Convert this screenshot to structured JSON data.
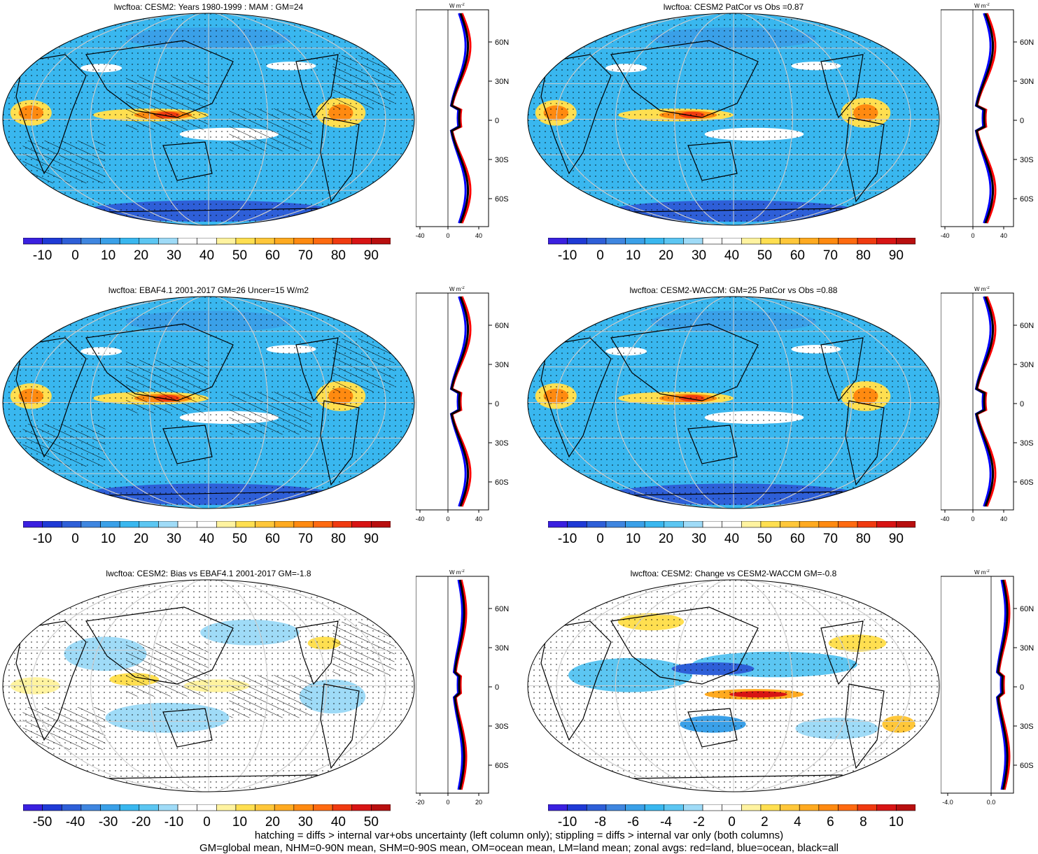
{
  "palette": [
    "#3a20e0",
    "#1f3ad6",
    "#2e5fd8",
    "#3f86e0",
    "#3aa0e8",
    "#39b7ef",
    "#5cc6f2",
    "#9fdbf7",
    "#ffffff",
    "#ffffff",
    "#fff3a0",
    "#ffdf50",
    "#ffc73a",
    "#ffaa20",
    "#ff8a10",
    "#ff6a10",
    "#f03a10",
    "#d81414",
    "#b80f0f"
  ],
  "panels": [
    {
      "title": "lwcftoa: CESM2: Years 1980-1999 : MAM : GM=24",
      "ticks": [
        "-10",
        "0",
        "10",
        "20",
        "30",
        "40",
        "50",
        "60",
        "70",
        "80",
        "90"
      ],
      "zonal_xticks": [
        "-40",
        "0",
        "40"
      ],
      "zonal_unit": "W m",
      "zonal_unit_sup": "-2",
      "lat_ticks": [
        "60N",
        "30N",
        "0",
        "30S",
        "60S"
      ],
      "kind": "mean",
      "hatch": true
    },
    {
      "title": "lwcftoa: CESM2 PatCor vs Obs =0.87",
      "ticks": [
        "-10",
        "0",
        "10",
        "20",
        "30",
        "40",
        "50",
        "60",
        "70",
        "80",
        "90"
      ],
      "zonal_xticks": [
        "-40",
        "0",
        "40"
      ],
      "zonal_unit": "W m",
      "zonal_unit_sup": "-2",
      "lat_ticks": [
        "60N",
        "30N",
        "0",
        "30S",
        "60S"
      ],
      "kind": "mean",
      "hatch": false
    },
    {
      "title": "lwcftoa: EBAF4.1 2001-2017 GM=26 Uncer=15 W/m2",
      "ticks": [
        "-10",
        "0",
        "10",
        "20",
        "30",
        "40",
        "50",
        "60",
        "70",
        "80",
        "90"
      ],
      "zonal_xticks": [
        "-40",
        "0",
        "40"
      ],
      "zonal_unit": "W m",
      "zonal_unit_sup": "-2",
      "lat_ticks": [
        "60N",
        "30N",
        "0",
        "30S",
        "60S"
      ],
      "kind": "mean",
      "hatch": true
    },
    {
      "title": "lwcftoa: CESM2-WACCM: GM=25 PatCor vs Obs =0.88",
      "ticks": [
        "-10",
        "0",
        "10",
        "20",
        "30",
        "40",
        "50",
        "60",
        "70",
        "80",
        "90"
      ],
      "zonal_xticks": [
        "-40",
        "0",
        "40"
      ],
      "zonal_unit": "W m",
      "zonal_unit_sup": "-2",
      "lat_ticks": [
        "60N",
        "30N",
        "0",
        "30S",
        "60S"
      ],
      "kind": "mean",
      "hatch": false
    },
    {
      "title": "lwcftoa: CESM2: Bias vs EBAF4.1 2001-2017 GM=-1.8",
      "ticks": [
        "-50",
        "-40",
        "-30",
        "-20",
        "-10",
        "0",
        "10",
        "20",
        "30",
        "40",
        "50"
      ],
      "zonal_xticks": [
        "-20",
        "0",
        "20"
      ],
      "zonal_unit": "W m",
      "zonal_unit_sup": "-2",
      "lat_ticks": [
        "60N",
        "30N",
        "0",
        "30S",
        "60S"
      ],
      "kind": "diff",
      "hatch": true
    },
    {
      "title": "lwcftoa: CESM2: Change vs CESM2-WACCM GM=-0.8",
      "ticks": [
        "-10",
        "-8",
        "-6",
        "-4",
        "-2",
        "0",
        "2",
        "4",
        "6",
        "8",
        "10"
      ],
      "zonal_xticks": [
        "-4.0",
        "0.0"
      ],
      "zonal_unit": "W m",
      "zonal_unit_sup": "-2",
      "lat_ticks": [
        "60N",
        "30N",
        "0",
        "30S",
        "60S"
      ],
      "kind": "change",
      "hatch": false
    }
  ],
  "footer": {
    "line1": "hatching = diffs > internal var+obs uncertainty (left column only); stippling = diffs > internal var only (both columns)",
    "line2": "GM=global mean, NHM=0-90N mean, SHM=0-90S mean, OM=ocean mean, LM=land mean; zonal avgs: red=land, blue=ocean, black=all"
  },
  "zonal_colors": {
    "land": "#ff0000",
    "ocean": "#0000ff",
    "all": "#000000"
  }
}
